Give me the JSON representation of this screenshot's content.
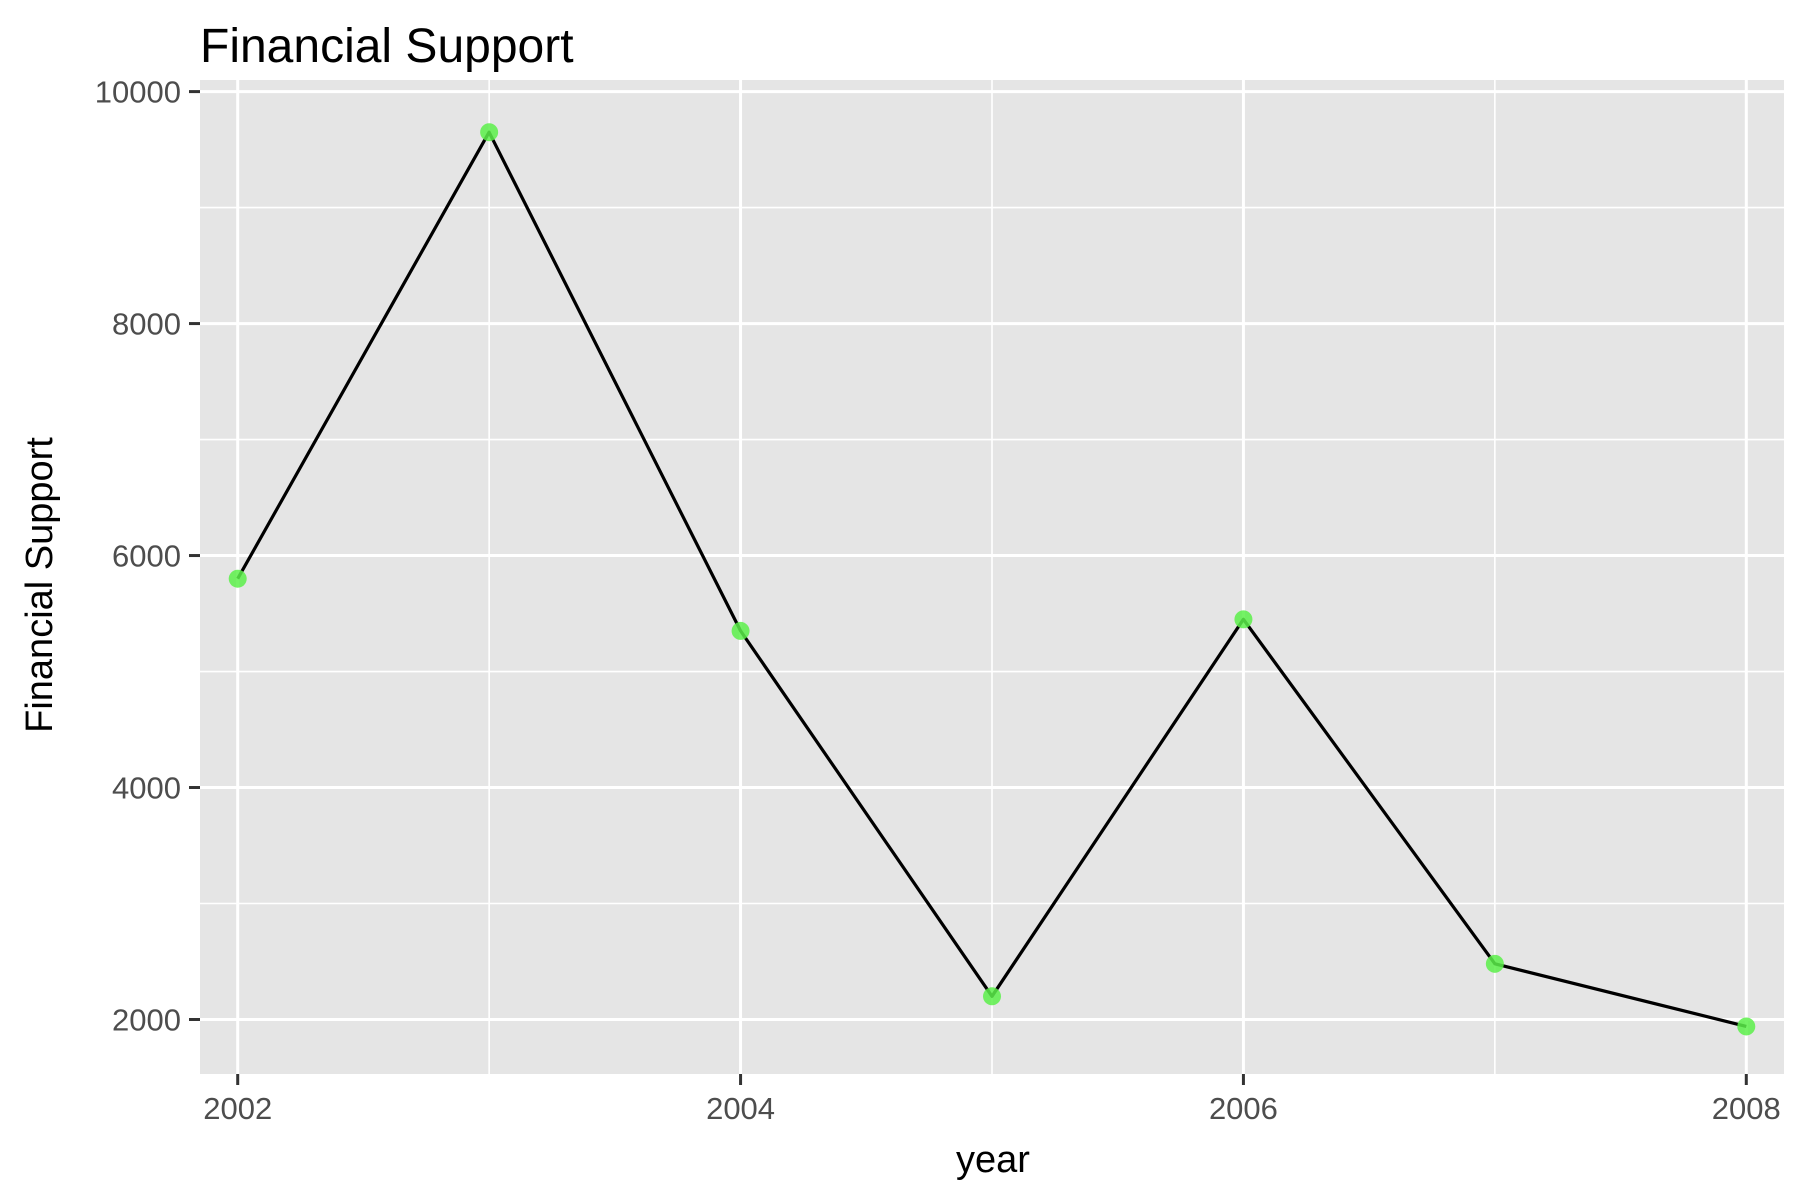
{
  "chart_data": {
    "type": "line",
    "title": "Financial Support",
    "xlabel": "year",
    "ylabel": "Financial Support",
    "x": [
      2002,
      2003,
      2004,
      2005,
      2006,
      2007,
      2008
    ],
    "series": [
      {
        "values": [
          5800,
          9650,
          5350,
          2200,
          5450,
          2480,
          1940
        ]
      }
    ],
    "xlim": [
      2001.85,
      2008.15
    ],
    "ylim": [
      1530,
      10100
    ],
    "x_ticks": [
      2002,
      2004,
      2006,
      2008
    ],
    "x_tick_labels": [
      "2002",
      "2004",
      "2006",
      "2008"
    ],
    "x_minor_ticks": [
      2003,
      2005,
      2007
    ],
    "y_ticks": [
      2000,
      4000,
      6000,
      8000,
      10000
    ],
    "y_tick_labels": [
      "2000",
      "4000",
      "6000",
      "8000",
      "10000"
    ],
    "y_minor_ticks": [
      3000,
      5000,
      7000,
      9000
    ],
    "grid": true,
    "colors": {
      "panel_background": "#e5e5e5",
      "grid": "#ffffff",
      "line": "#000000",
      "point": "#5cf04a"
    }
  }
}
